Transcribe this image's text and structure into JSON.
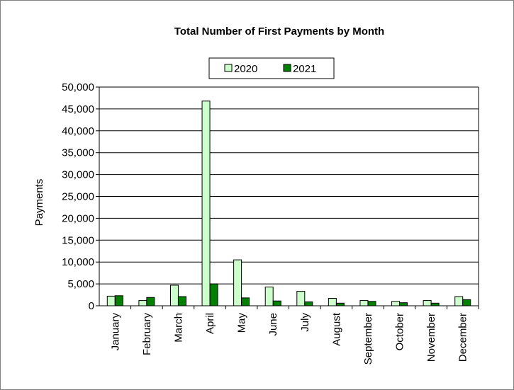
{
  "chart_data": {
    "type": "bar",
    "title": "Total Number of First Payments by Month",
    "xlabel": "",
    "ylabel": "Payments",
    "ylim": [
      0,
      50000
    ],
    "yticks": [
      "0",
      "5,000",
      "10,000",
      "15,000",
      "20,000",
      "25,000",
      "30,000",
      "35,000",
      "40,000",
      "45,000",
      "50,000"
    ],
    "categories": [
      "January",
      "February",
      "March",
      "April",
      "May",
      "June",
      "July",
      "August",
      "September",
      "October",
      "November",
      "December"
    ],
    "series": [
      {
        "name": "2020",
        "color": "#ccffcc",
        "values": [
          2200,
          1200,
          4700,
          46800,
          10500,
          4300,
          3300,
          1700,
          1200,
          1000,
          1200,
          2100
        ]
      },
      {
        "name": "2021",
        "color": "#008000",
        "values": [
          2300,
          1900,
          2100,
          5000,
          1800,
          1100,
          900,
          600,
          1000,
          700,
          600,
          1400
        ]
      }
    ],
    "grid": true,
    "legend": "top-center"
  }
}
